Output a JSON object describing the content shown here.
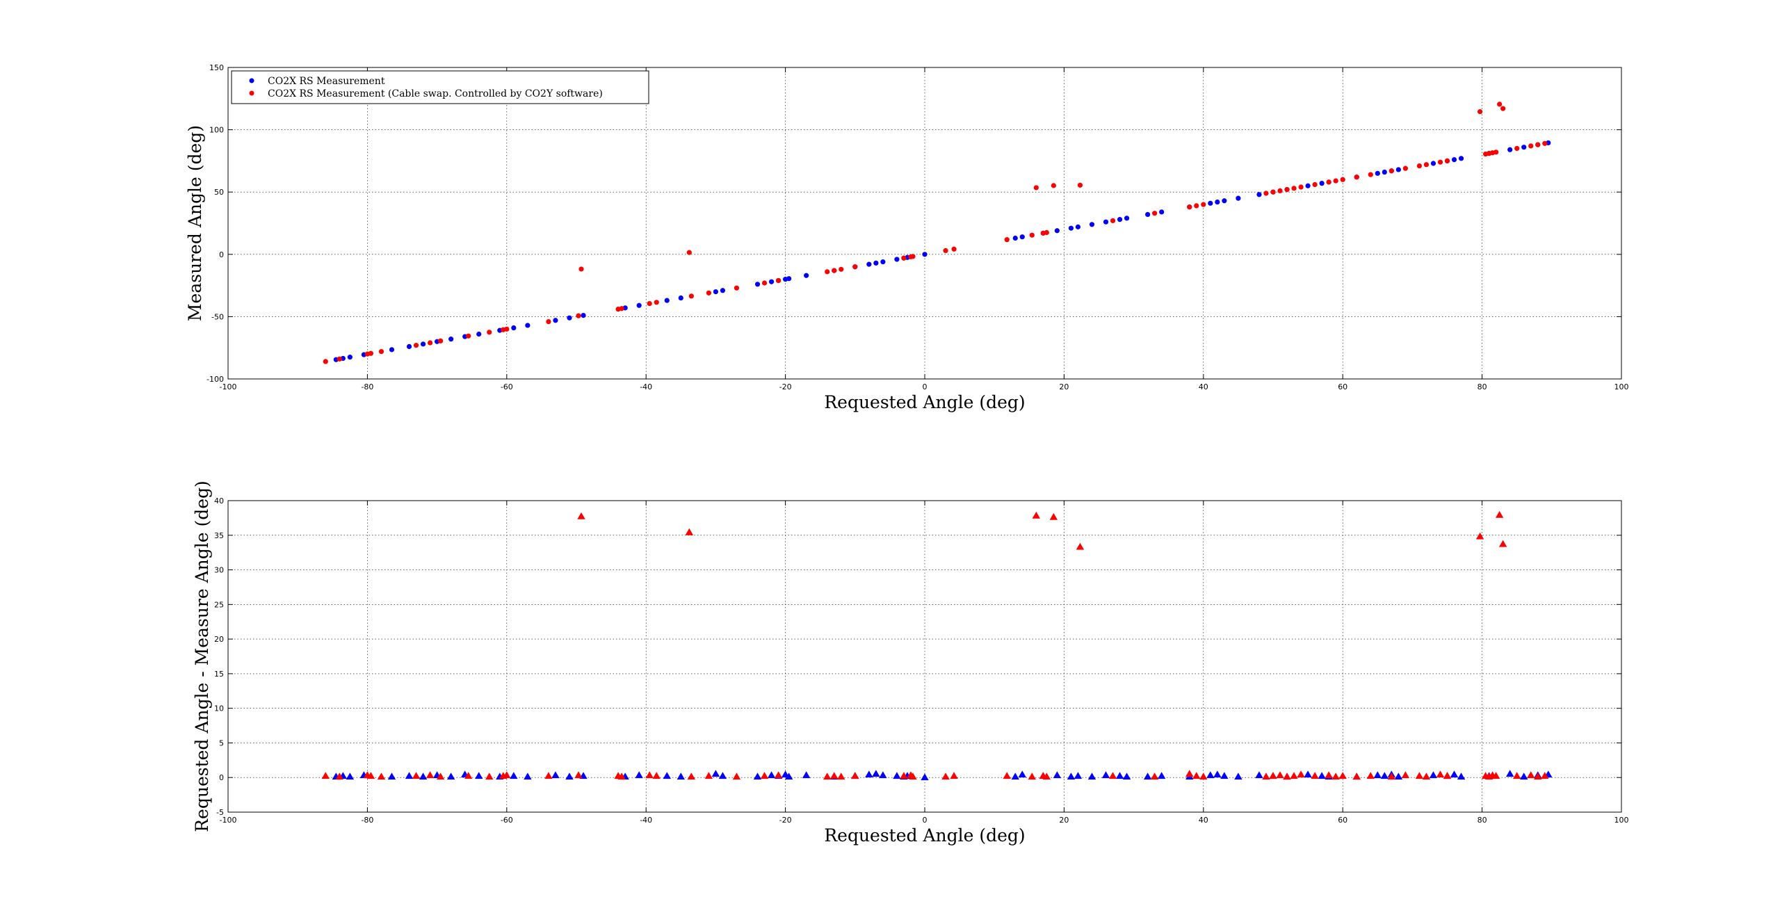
{
  "chart_data": [
    {
      "type": "scatter",
      "title": "",
      "xlabel": "Requested Angle (deg)",
      "ylabel": "Measured Angle (deg)",
      "xlim": [
        -100,
        100
      ],
      "ylim": [
        -100,
        150
      ],
      "xticks": [
        -100,
        -80,
        -60,
        -40,
        -20,
        0,
        20,
        40,
        60,
        80,
        100
      ],
      "yticks": [
        -100,
        -50,
        0,
        50,
        100,
        150
      ],
      "xtick_labels": [
        "-100",
        "-80",
        "-60",
        "-40",
        "-20",
        "0",
        "20",
        "40",
        "60",
        "80",
        "100"
      ],
      "ytick_labels": [
        "-100",
        "-50",
        "0",
        "50",
        "100",
        "150"
      ],
      "grid": true,
      "legend_position": "top-left",
      "series": [
        {
          "name": "CO2X RS Measurement",
          "color": "#0000ff",
          "marker": "circle",
          "x": [
            -84.5,
            -83.5,
            -82.5,
            -80.5,
            -76.5,
            -74,
            -72,
            -70,
            -68,
            -66,
            -64,
            -61,
            -59,
            -57,
            -53,
            -51,
            -49,
            -43,
            -41,
            -37,
            -35,
            -30,
            -29,
            -24,
            -22,
            -21,
            -20,
            -19.5,
            -17,
            -13,
            -10,
            -8,
            -7,
            -6,
            -4,
            -3,
            -2.5,
            0,
            13,
            14,
            17,
            19,
            21,
            22,
            24,
            26,
            28,
            29,
            32,
            34,
            38,
            41,
            42,
            43,
            45,
            48,
            50,
            52,
            55,
            57,
            58,
            62,
            65,
            66,
            67,
            68,
            73,
            75,
            76,
            77,
            81,
            84,
            86,
            88,
            89.5
          ],
          "y": [
            -84.5,
            -83.5,
            -82.5,
            -80.5,
            -76.5,
            -74,
            -72,
            -70,
            -68,
            -66,
            -64,
            -61,
            -59,
            -57,
            -53,
            -51,
            -49,
            -43,
            -41,
            -37,
            -35,
            -30,
            -29,
            -24,
            -22,
            -21,
            -20,
            -19.5,
            -17,
            -13,
            -10,
            -8,
            -7,
            -6,
            -4,
            -3,
            -2.5,
            0,
            13,
            14,
            17,
            19,
            21,
            22,
            24,
            26,
            28,
            29,
            32,
            34,
            38,
            41,
            42,
            43,
            45,
            48,
            50,
            52,
            55,
            57,
            58,
            62,
            65,
            66,
            67,
            68,
            73,
            75,
            76,
            77,
            81,
            84,
            86,
            88,
            89.5
          ]
        },
        {
          "name": "CO2X RS Measurement (Cable swap.  Controlled by CO2Y software)",
          "color": "#ff0000",
          "marker": "circle",
          "x": [
            -86,
            -84,
            -80,
            -79.5,
            -78,
            -73,
            -71,
            -69.5,
            -65.5,
            -62.5,
            -60.5,
            -60,
            -54,
            -49.7,
            -49.3,
            -44,
            -43.5,
            -39.5,
            -38.5,
            -33.5,
            -33.8,
            -31,
            -27,
            -23,
            -21,
            -14,
            -13,
            -12,
            -10,
            -3,
            -2,
            -1.7,
            3,
            4.2,
            11.8,
            15.4,
            16,
            17,
            17.5,
            18.5,
            22.3,
            27,
            33,
            38,
            39,
            40,
            49,
            50,
            51,
            52,
            53,
            54,
            56,
            58,
            59,
            60,
            62,
            64,
            67,
            69,
            71,
            72,
            74,
            75,
            79.7,
            80.5,
            81,
            81.5,
            82,
            82.5,
            83,
            85,
            87,
            88,
            89
          ],
          "y": [
            -86,
            -84,
            -80,
            -79.5,
            -78,
            -73,
            -71,
            -69.5,
            -65.5,
            -62.5,
            -60.5,
            -60,
            -54,
            -49.3,
            -11.8,
            -44,
            -43.5,
            -39.5,
            -38.5,
            -33.5,
            1.5,
            -31,
            -27,
            -23,
            -21,
            -14,
            -13,
            -12,
            -10,
            -3,
            -2,
            -1.7,
            3,
            4.2,
            11.8,
            15.4,
            53.5,
            17,
            17.5,
            55.2,
            55.5,
            27,
            33,
            38,
            39,
            40,
            49,
            50,
            51,
            52,
            53,
            54,
            56,
            58,
            59,
            60,
            62,
            64,
            67,
            69,
            71,
            72,
            74,
            75,
            114.5,
            80.5,
            81,
            81.5,
            82,
            120.5,
            117,
            85,
            87,
            88,
            89
          ]
        }
      ]
    },
    {
      "type": "scatter",
      "title": "",
      "xlabel": "Requested Angle (deg)",
      "ylabel": "Requested Angle - Measure Angle (deg)",
      "xlim": [
        -100,
        100
      ],
      "ylim": [
        -5,
        40
      ],
      "xticks": [
        -100,
        -80,
        -60,
        -40,
        -20,
        0,
        20,
        40,
        60,
        80,
        100
      ],
      "yticks": [
        -5,
        0,
        5,
        10,
        15,
        20,
        25,
        30,
        35,
        40
      ],
      "xtick_labels": [
        "-100",
        "-80",
        "-60",
        "-40",
        "-20",
        "0",
        "20",
        "40",
        "60",
        "80",
        "100"
      ],
      "ytick_labels": [
        "-5",
        "0",
        "5",
        "10",
        "15",
        "20",
        "25",
        "30",
        "35",
        "40"
      ],
      "grid": true,
      "series": [
        {
          "color": "#0000ff",
          "marker": "triangle",
          "x": [
            -84.5,
            -83.5,
            -82.5,
            -80.5,
            -76.5,
            -74,
            -72,
            -70,
            -68,
            -66,
            -64,
            -61,
            -59,
            -57,
            -53,
            -51,
            -49,
            -43,
            -41,
            -37,
            -35,
            -30,
            -29,
            -24,
            -22,
            -21,
            -20,
            -19.5,
            -17,
            -13,
            -10,
            -8,
            -7,
            -6,
            -4,
            -3,
            -2.5,
            0,
            13,
            14,
            17,
            19,
            21,
            22,
            24,
            26,
            28,
            29,
            32,
            34,
            38,
            41,
            42,
            43,
            45,
            48,
            50,
            52,
            55,
            57,
            58,
            62,
            65,
            66,
            67,
            68,
            73,
            75,
            76,
            77,
            81,
            84,
            86,
            88,
            89.5
          ],
          "y": [
            0.1,
            0.2,
            0.1,
            0.3,
            0.1,
            0.2,
            0.1,
            0.3,
            0.1,
            0.4,
            0.2,
            0.1,
            0.2,
            0.1,
            0.3,
            0.1,
            0.2,
            0.1,
            0.3,
            0.2,
            0.1,
            0.5,
            0.2,
            0.1,
            0.3,
            0.2,
            0.4,
            0.1,
            0.3,
            0.1,
            0.2,
            0.4,
            0.5,
            0.3,
            0.2,
            0.1,
            0.2,
            0,
            0.1,
            0.4,
            0.2,
            0.3,
            0.1,
            0.2,
            0.1,
            0.3,
            0.2,
            0.1,
            0.1,
            0.2,
            0.1,
            0.3,
            0.4,
            0.2,
            0.1,
            0.3,
            0.2,
            0.1,
            0.4,
            0.2,
            0.1,
            0.1,
            0.3,
            0.2,
            0.4,
            0.1,
            0.3,
            0.2,
            0.4,
            0.1,
            0.2,
            0.5,
            0.1,
            0.3,
            0.4
          ]
        },
        {
          "color": "#ff0000",
          "marker": "triangle",
          "x": [
            -86,
            -84,
            -80,
            -79.5,
            -78,
            -73,
            -71,
            -69.5,
            -65.5,
            -62.5,
            -60.5,
            -60,
            -54,
            -49.7,
            -49.3,
            -44,
            -43.5,
            -39.5,
            -38.5,
            -33.5,
            -33.8,
            -31,
            -27,
            -23,
            -21,
            -14,
            -13,
            -12,
            -10,
            -3,
            -2,
            -1.7,
            3,
            4.2,
            11.8,
            15.4,
            16,
            17,
            17.5,
            18.5,
            22.3,
            27,
            33,
            38,
            39,
            40,
            49,
            50,
            51,
            52,
            53,
            54,
            56,
            58,
            59,
            60,
            62,
            64,
            67,
            69,
            71,
            72,
            74,
            75,
            79.7,
            80.5,
            81,
            81.5,
            82,
            82.5,
            83,
            85,
            87,
            88,
            89
          ],
          "y": [
            0.2,
            0.1,
            0.3,
            0.2,
            0.1,
            0.2,
            0.3,
            0.1,
            0.2,
            0.1,
            0.2,
            0.3,
            0.2,
            0.3,
            37.7,
            0.2,
            0.1,
            0.3,
            0.2,
            0.1,
            35.4,
            0.2,
            0.1,
            0.2,
            0.3,
            0.1,
            0.2,
            0.1,
            0.2,
            0.2,
            0.3,
            0.1,
            0.1,
            0.2,
            0.2,
            0.1,
            37.8,
            0.2,
            0.1,
            37.6,
            33.3,
            0.2,
            0.1,
            0.5,
            0.2,
            0.1,
            0.1,
            0.2,
            0.3,
            0.1,
            0.2,
            0.4,
            0.2,
            0.3,
            0.1,
            0.2,
            0.1,
            0.2,
            0.1,
            0.3,
            0.2,
            0.1,
            0.4,
            0.2,
            34.8,
            0.2,
            0.1,
            0.3,
            0.2,
            37.9,
            33.7,
            0.2,
            0.3,
            0.1,
            0.2
          ]
        }
      ]
    }
  ]
}
